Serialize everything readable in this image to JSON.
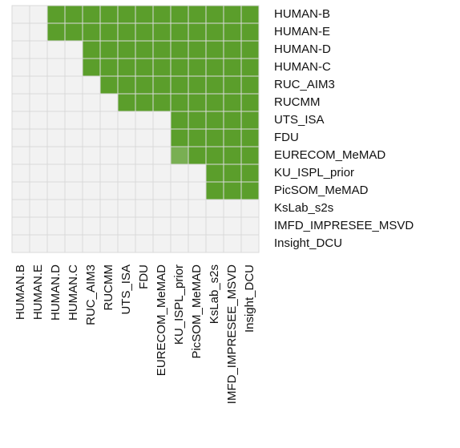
{
  "chart_data": {
    "type": "heatmap",
    "rows": [
      "HUMAN-B",
      "HUMAN-E",
      "HUMAN-D",
      "HUMAN-C",
      "RUC_AIM3",
      "RUCMM",
      "UTS_ISA",
      "FDU",
      "EURECOM_MeMAD",
      "KU_ISPL_prior",
      "PicSOM_MeMAD",
      "KsLab_s2s",
      "IMFD_IMPRESEE_MSVD",
      "Insight_DCU"
    ],
    "columns": [
      "HUMAN.B",
      "HUMAN.E",
      "HUMAN.D",
      "HUMAN.C",
      "RUC_AIM3",
      "RUCMM",
      "UTS_ISA",
      "FDU",
      "EURECOM_MeMAD",
      "KU_ISPL_prior",
      "PicSOM_MeMAD",
      "KsLab_s2s",
      "IMFD_IMPRESEE_MSVD",
      "Insight_DCU"
    ],
    "values": [
      [
        0,
        0,
        1,
        1,
        1,
        1,
        1,
        1,
        1,
        1,
        1,
        1,
        1,
        1
      ],
      [
        0,
        0,
        1,
        1,
        1,
        1,
        1,
        1,
        1,
        1,
        1,
        1,
        1,
        1
      ],
      [
        0,
        0,
        0,
        0,
        1,
        1,
        1,
        1,
        1,
        1,
        1,
        1,
        1,
        1
      ],
      [
        0,
        0,
        0,
        0,
        1,
        1,
        1,
        1,
        1,
        1,
        1,
        1,
        1,
        1
      ],
      [
        0,
        0,
        0,
        0,
        0,
        1,
        1,
        1,
        1,
        1,
        1,
        1,
        1,
        1
      ],
      [
        0,
        0,
        0,
        0,
        0,
        0,
        1,
        1,
        1,
        1,
        1,
        1,
        1,
        1
      ],
      [
        0,
        0,
        0,
        0,
        0,
        0,
        0,
        0,
        0,
        1,
        1,
        1,
        1,
        1
      ],
      [
        0,
        0,
        0,
        0,
        0,
        0,
        0,
        0,
        0,
        1,
        1,
        1,
        1,
        1
      ],
      [
        0,
        0,
        0,
        0,
        0,
        0,
        0,
        0,
        0,
        0.8,
        1,
        1,
        1,
        1
      ],
      [
        0,
        0,
        0,
        0,
        0,
        0,
        0,
        0,
        0,
        0,
        0,
        1,
        1,
        1
      ],
      [
        0,
        0,
        0,
        0,
        0,
        0,
        0,
        0,
        0,
        0,
        0,
        1,
        1,
        1
      ],
      [
        0,
        0,
        0,
        0,
        0,
        0,
        0,
        0,
        0,
        0,
        0,
        0,
        0,
        0
      ],
      [
        0,
        0,
        0,
        0,
        0,
        0,
        0,
        0,
        0,
        0,
        0,
        0,
        0,
        0
      ],
      [
        0,
        0,
        0,
        0,
        0,
        0,
        0,
        0,
        0,
        0,
        0,
        0,
        0,
        0
      ]
    ],
    "color_scale": [
      "#f2f2f2",
      "#5b9e2b"
    ]
  }
}
